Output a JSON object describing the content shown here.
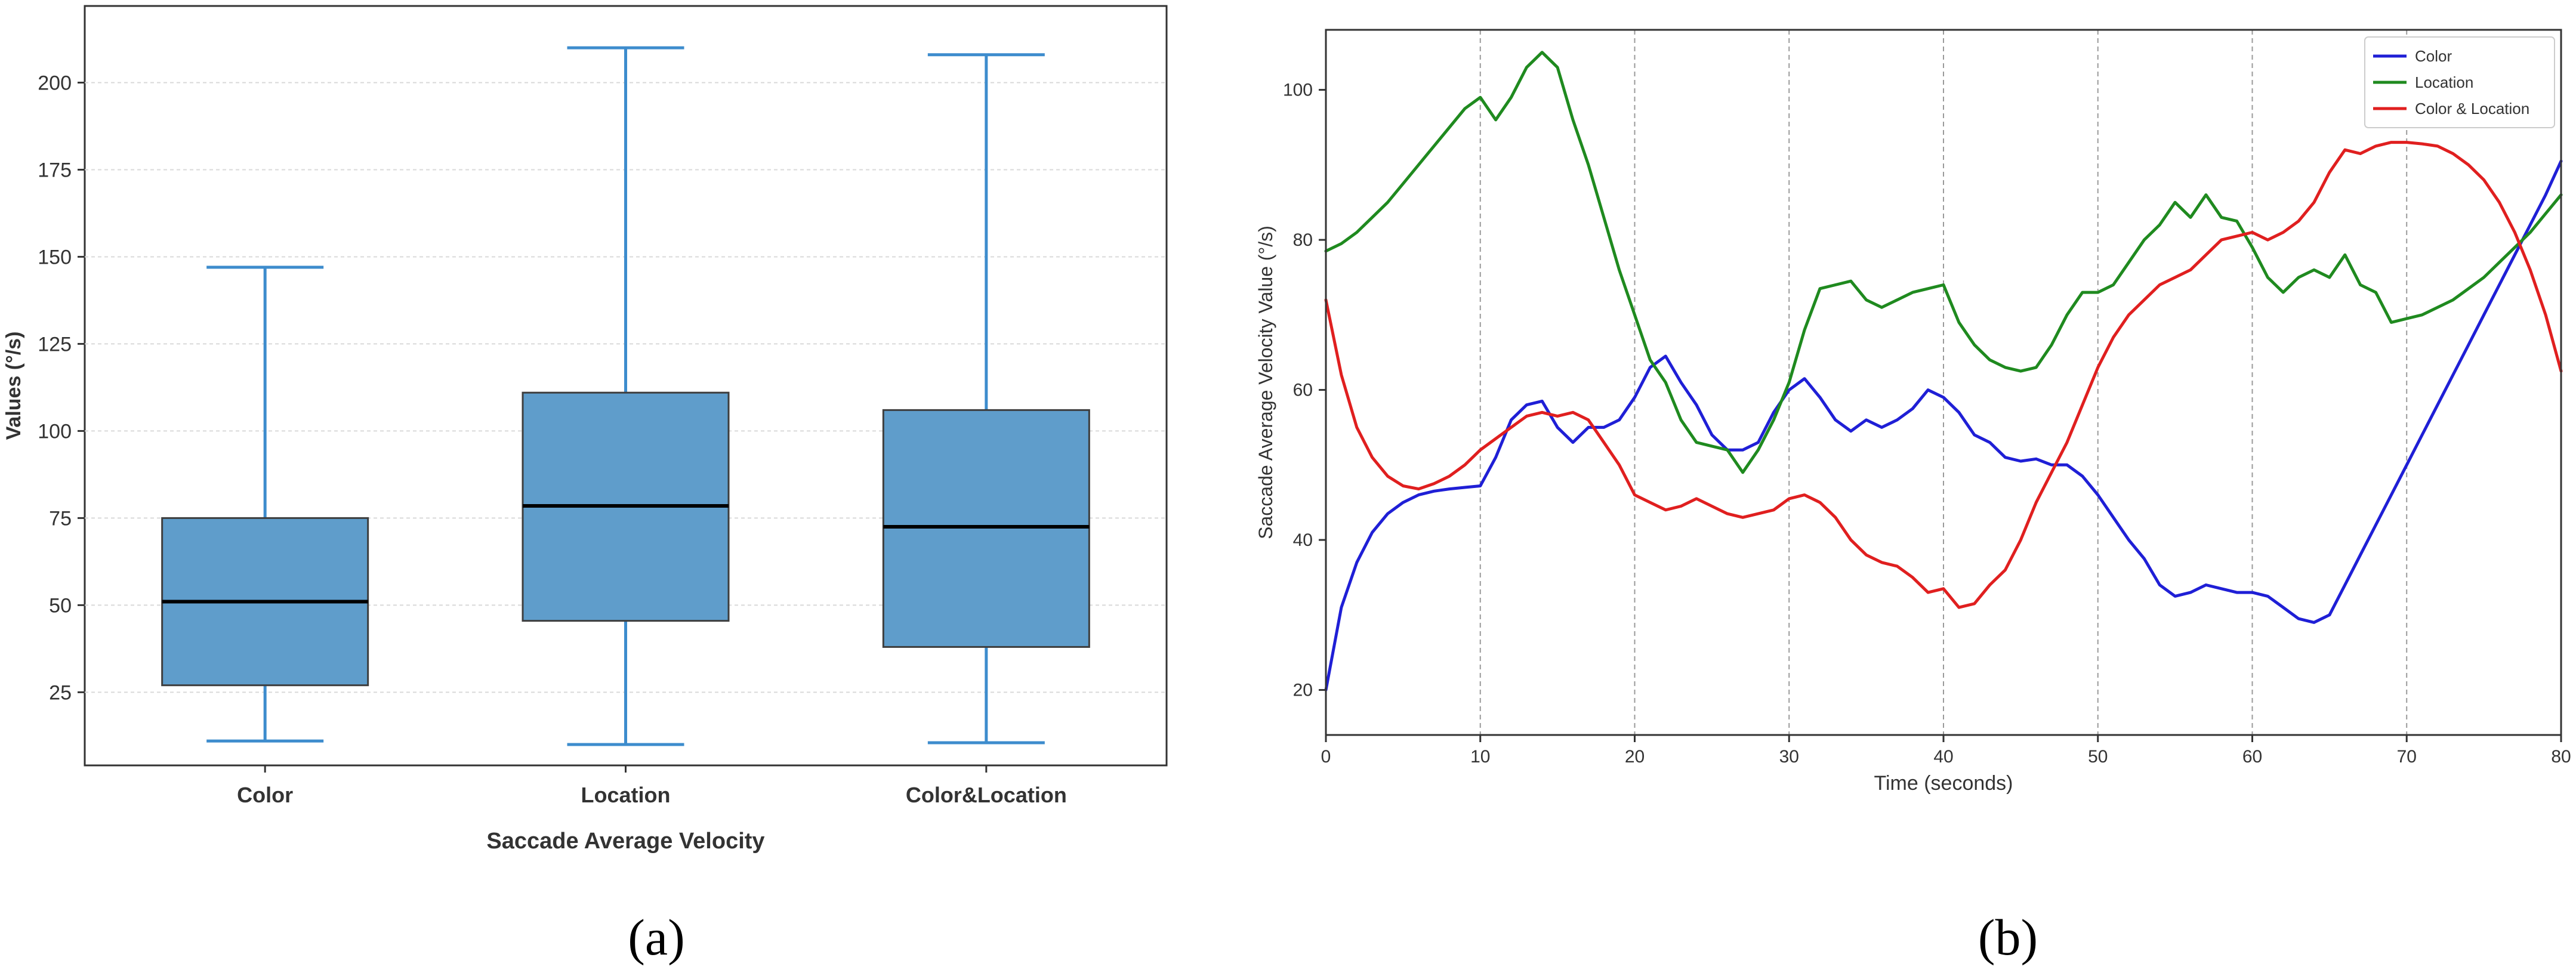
{
  "panel_labels": [
    "(a)",
    "(b)"
  ],
  "colors": {
    "box_fill": "#5f9dcb",
    "box_edge": "#3e3e3e",
    "whisker": "#3d8ccd",
    "median": "#000000",
    "grid": "#d9d9d9",
    "color_series": "#1f1fd6",
    "location_series": "#1f8a1f",
    "color_location_series": "#e01f1f"
  },
  "chart_data": [
    {
      "type": "box",
      "title": "",
      "xlabel": "Saccade Average Velocity",
      "ylabel": "Values (°/s)",
      "categories": [
        "Color",
        "Location",
        "Color&Location"
      ],
      "boxes": [
        {
          "name": "Color",
          "whisker_low": 11,
          "q1": 27,
          "median": 51,
          "q3": 75,
          "whisker_high": 147
        },
        {
          "name": "Location",
          "whisker_low": 10,
          "q1": 45.5,
          "median": 78.5,
          "q3": 111,
          "whisker_high": 210
        },
        {
          "name": "Color&Location",
          "whisker_low": 10.5,
          "q1": 38,
          "median": 72.5,
          "q3": 106,
          "whisker_high": 208
        }
      ],
      "yticks": [
        25,
        50,
        75,
        100,
        125,
        150,
        175,
        200
      ],
      "ytick_labels": [
        "25",
        "50",
        "75",
        "100",
        "125",
        "150",
        "175",
        "200"
      ],
      "ylim": [
        4,
        222
      ],
      "grid": "horizontal"
    },
    {
      "type": "line",
      "title": "",
      "xlabel": "Time (seconds)",
      "ylabel": "Saccade Average Velocity Value (°/s)",
      "xlim": [
        0,
        80
      ],
      "ylim": [
        14,
        108
      ],
      "xticks": [
        0,
        10,
        20,
        30,
        40,
        50,
        60,
        70,
        80
      ],
      "xtick_labels": [
        "0",
        "10",
        "20",
        "30",
        "40",
        "50",
        "60",
        "70",
        "80"
      ],
      "yticks": [
        20,
        40,
        60,
        80,
        100
      ],
      "ytick_labels": [
        "20",
        "40",
        "60",
        "80",
        "100"
      ],
      "grid": "vertical",
      "legend": "top-right",
      "series": [
        {
          "name": "Color",
          "x": [
            0,
            1,
            2,
            3,
            4,
            5,
            6,
            7,
            8,
            9,
            10,
            11,
            12,
            13,
            14,
            15,
            16,
            17,
            18,
            19,
            20,
            21,
            22,
            23,
            24,
            25,
            26,
            27,
            28,
            29,
            30,
            31,
            32,
            33,
            34,
            35,
            36,
            37,
            38,
            39,
            40,
            41,
            42,
            43,
            44,
            45,
            46,
            47,
            48,
            49,
            50,
            51,
            52,
            53,
            54,
            55,
            56,
            57,
            58,
            59,
            60,
            61,
            62,
            63,
            64,
            65,
            66,
            67,
            68,
            69,
            70,
            71,
            72,
            73,
            74,
            75,
            76,
            77,
            78,
            79,
            80
          ],
          "y": [
            20,
            31,
            37,
            41,
            43.5,
            45,
            46,
            46.5,
            46.8,
            47,
            47.2,
            51,
            56,
            58,
            58.5,
            55,
            53,
            55,
            55,
            56,
            59,
            63,
            64.5,
            61,
            58,
            54,
            52,
            52,
            53,
            57,
            60,
            61.5,
            59,
            56,
            54.5,
            56,
            55,
            56,
            57.5,
            60,
            59,
            57,
            54,
            53,
            51,
            50.5,
            50.8,
            50,
            50,
            48.5,
            46,
            43,
            40,
            37.5,
            34,
            32.5,
            33,
            34,
            33.5,
            33,
            33,
            32.5,
            31,
            29.5,
            29,
            30,
            34,
            38,
            42,
            46,
            50,
            54,
            58,
            62,
            66,
            70,
            74,
            78,
            82,
            86,
            90.5
          ]
        },
        {
          "name": "Location",
          "x": [
            0,
            1,
            2,
            3,
            4,
            5,
            6,
            7,
            8,
            9,
            10,
            11,
            12,
            13,
            14,
            15,
            16,
            17,
            18,
            19,
            20,
            21,
            22,
            23,
            24,
            25,
            26,
            27,
            28,
            29,
            30,
            31,
            32,
            33,
            34,
            35,
            36,
            37,
            38,
            39,
            40,
            41,
            42,
            43,
            44,
            45,
            46,
            47,
            48,
            49,
            50,
            51,
            52,
            53,
            54,
            55,
            56,
            57,
            58,
            59,
            60,
            61,
            62,
            63,
            64,
            65,
            66,
            67,
            68,
            69,
            70,
            71,
            72,
            73,
            74,
            75,
            76,
            77,
            78,
            79,
            80
          ],
          "y": [
            78.5,
            79.5,
            81,
            83,
            85,
            87.5,
            90,
            92.5,
            95,
            97.5,
            99,
            96,
            99,
            103,
            105,
            103,
            96,
            90,
            83,
            76,
            70,
            64,
            61,
            56,
            53,
            52.5,
            52,
            49,
            52,
            56,
            61,
            68,
            73.5,
            74,
            74.5,
            72,
            71,
            72,
            73,
            73.5,
            74,
            69,
            66,
            64,
            63,
            62.5,
            63,
            66,
            70,
            73,
            73,
            74,
            77,
            80,
            82,
            85,
            83,
            86,
            83,
            82.5,
            79,
            75,
            73,
            75,
            76,
            75,
            78,
            74,
            73,
            69,
            69.5,
            70,
            71,
            72,
            73.5,
            75,
            77,
            79,
            81,
            83.5,
            86
          ]
        },
        {
          "name": "Color & Location",
          "x": [
            0,
            1,
            2,
            3,
            4,
            5,
            6,
            7,
            8,
            9,
            10,
            11,
            12,
            13,
            14,
            15,
            16,
            17,
            18,
            19,
            20,
            21,
            22,
            23,
            24,
            25,
            26,
            27,
            28,
            29,
            30,
            31,
            32,
            33,
            34,
            35,
            36,
            37,
            38,
            39,
            40,
            41,
            42,
            43,
            44,
            45,
            46,
            47,
            48,
            49,
            50,
            51,
            52,
            53,
            54,
            55,
            56,
            57,
            58,
            59,
            60,
            61,
            62,
            63,
            64,
            65,
            66,
            67,
            68,
            69,
            70,
            71,
            72,
            73,
            74,
            75,
            76,
            77,
            78,
            79,
            80
          ],
          "y": [
            72,
            62,
            55,
            51,
            48.5,
            47.2,
            46.8,
            47.5,
            48.5,
            50,
            52,
            53.5,
            55,
            56.5,
            57,
            56.5,
            57,
            56,
            53,
            50,
            46,
            45,
            44,
            44.5,
            45.5,
            44.5,
            43.5,
            43,
            43.5,
            44,
            45.5,
            46,
            45,
            43,
            40,
            38,
            37,
            36.5,
            35,
            33,
            33.5,
            31,
            31.5,
            34,
            36,
            40,
            45,
            49,
            53,
            58,
            63,
            67,
            70,
            72,
            74,
            75,
            76,
            78,
            80,
            80.5,
            81,
            80,
            81,
            82.5,
            85,
            89,
            92,
            91.5,
            92.5,
            93,
            93,
            92.8,
            92.5,
            91.5,
            90,
            88,
            85,
            81,
            76,
            70,
            62.5
          ]
        }
      ]
    }
  ]
}
